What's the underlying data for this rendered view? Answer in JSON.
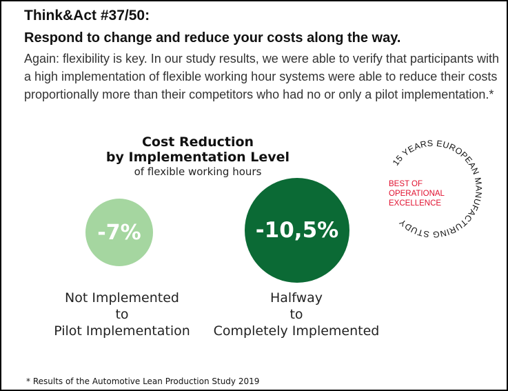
{
  "header": {
    "title": "Think&Act #37/50:",
    "subtitle": "Respond to change and reduce your costs along the way.",
    "body": "Again: flexibility is key. In our study results, we were able to verify that participants with a high implementation of flexible working hour systems were able to reduce their costs proportionally more than their competitors who had no or only a pilot implementation.*"
  },
  "chart": {
    "title_line1": "Cost Reduction",
    "title_line2": "by Implementation Level",
    "subtitle": "of flexible working hours",
    "items": [
      {
        "value": "-7%",
        "label_lines": [
          "Not Implemented",
          "to",
          "Pilot Implementation"
        ],
        "color": "#a5d6a0"
      },
      {
        "value": "-10,5%",
        "label_lines": [
          "Halfway",
          "to",
          "Completely Implemented"
        ],
        "color": "#0b6a35"
      }
    ]
  },
  "badge": {
    "ring_text": "15 YEARS EUROPEAN MANUFACTURING STUDY",
    "lines": [
      "BEST OF",
      "OPERATIONAL",
      "EXCELLENCE"
    ],
    "accent": "#e0102f"
  },
  "footnote": "* Results of the Automotive Lean Production Study 2019"
}
